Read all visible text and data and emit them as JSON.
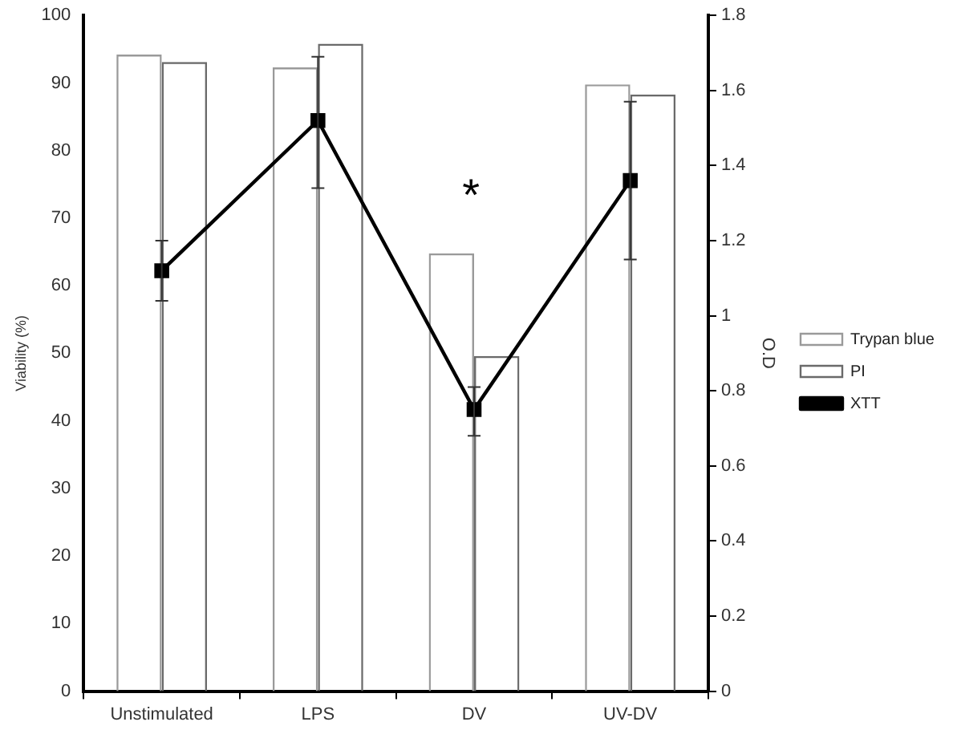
{
  "chart_data": {
    "type": "bar",
    "categories": [
      "Unstimulated",
      "LPS",
      "DV",
      "UV-DV"
    ],
    "ylabel": "Viability (%)",
    "y2label": "O.D",
    "series": [
      {
        "name": "Trypan blue",
        "color": "#9a9a9a",
        "values": [
          94.2,
          92.3,
          64.8,
          89.8
        ]
      },
      {
        "name": "PI",
        "color": "#6a6a6a",
        "values": [
          93.1,
          95.8,
          49.6,
          88.3
        ]
      },
      {
        "name": "XTT",
        "type": "line",
        "axis": "y2",
        "color": "#000000",
        "values": [
          1.12,
          1.52,
          0.75,
          1.36
        ],
        "errors": [
          [
            1.04,
            1.2
          ],
          [
            1.34,
            1.69
          ],
          [
            0.68,
            0.81
          ],
          [
            1.15,
            1.57
          ]
        ]
      }
    ],
    "ylim": [
      0,
      100
    ],
    "yticks": [
      0,
      10,
      20,
      30,
      40,
      50,
      60,
      70,
      80,
      90,
      100
    ],
    "y2lim": [
      0,
      1.8
    ],
    "y2ticks": [
      0,
      0.2,
      0.4,
      0.6,
      0.8,
      1,
      1.2,
      1.4,
      1.6,
      1.8
    ],
    "annotations": [
      "*"
    ],
    "marker": "square",
    "line_style": "solid",
    "grid": false,
    "legend": "right"
  }
}
